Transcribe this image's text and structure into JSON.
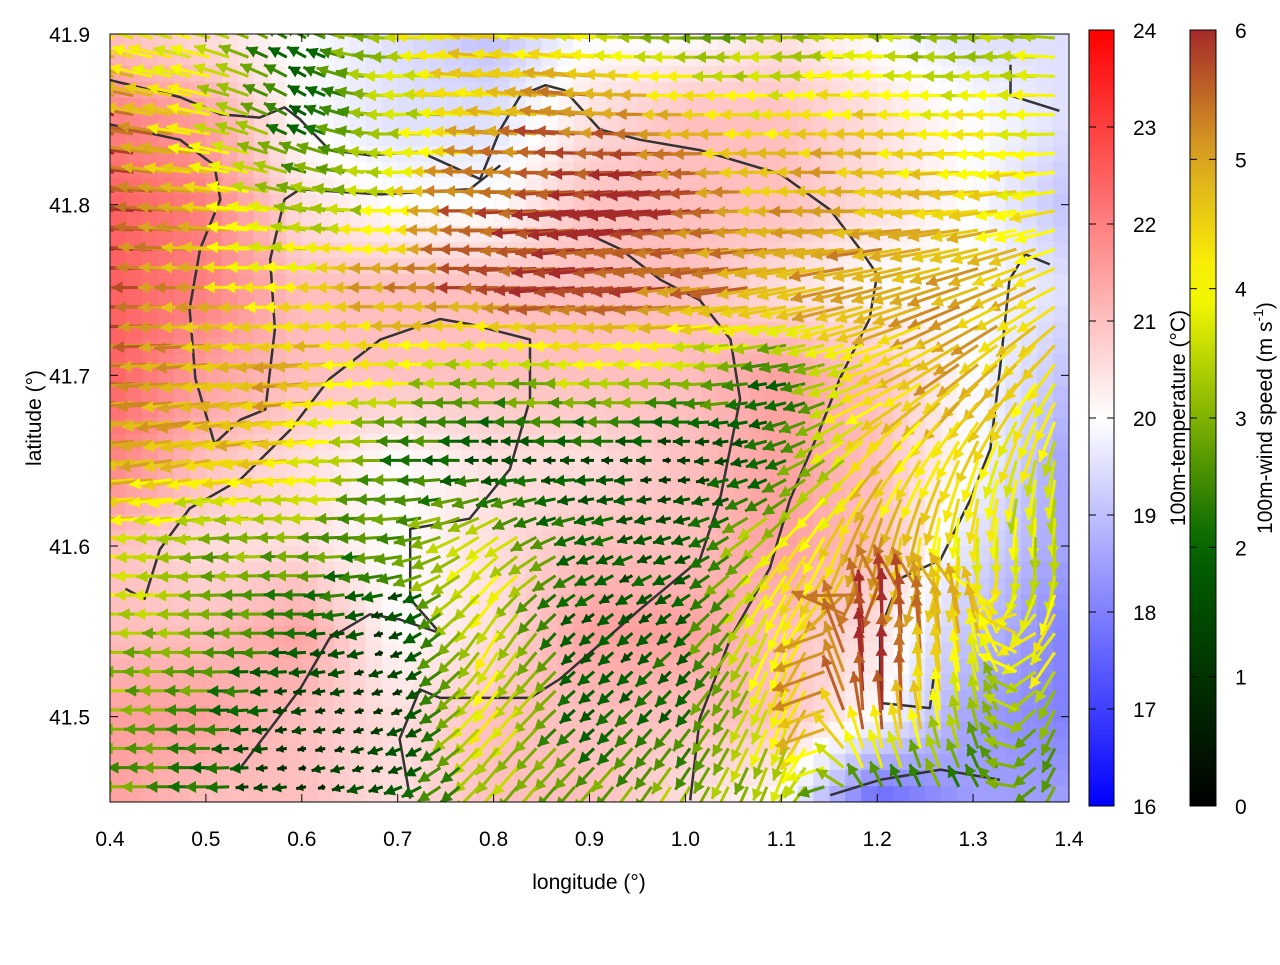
{
  "chart_data": {
    "type": "heatmap",
    "overlay": "vector field (wind arrows) with contour lines",
    "xlabel": "longitude (°)",
    "ylabel": "latitude (°)",
    "xlim": [
      0.4,
      1.4
    ],
    "ylim": [
      41.45,
      41.9
    ],
    "xticks": [
      "0.4",
      "0.5",
      "0.6",
      "0.7",
      "0.8",
      "0.9",
      "1.0",
      "1.1",
      "1.2",
      "1.3",
      "1.4"
    ],
    "yticks": [
      "41.5",
      "41.6",
      "41.7",
      "41.8",
      "41.9"
    ],
    "grid": false,
    "grid_lon": [
      0.4,
      0.5,
      0.6,
      0.7,
      0.8,
      0.9,
      1.0,
      1.1,
      1.2,
      1.3,
      1.4
    ],
    "grid_lat": [
      41.9,
      41.85,
      41.8,
      41.75,
      41.7,
      41.65,
      41.6,
      41.55,
      41.5,
      41.45
    ],
    "temperature_c": [
      [
        21,
        20.5,
        20,
        19.5,
        19,
        20,
        20,
        20.5,
        20,
        19.5,
        19.5
      ],
      [
        22,
        21.5,
        20,
        19.5,
        19.5,
        20.5,
        21,
        21,
        20.5,
        20,
        19.5
      ],
      [
        22.5,
        22,
        20.5,
        20,
        20,
        21,
        21,
        21,
        20.5,
        20,
        19
      ],
      [
        22.5,
        22,
        21,
        21,
        21,
        21,
        21,
        20.5,
        20,
        20,
        19.5
      ],
      [
        22.5,
        21.5,
        21,
        21,
        21,
        21,
        21,
        21.5,
        21,
        20,
        19
      ],
      [
        22,
        21,
        20.5,
        20,
        20.5,
        20.5,
        21,
        21.5,
        21,
        20,
        18.5
      ],
      [
        21,
        20.5,
        20.5,
        20,
        20.5,
        21,
        21,
        21.5,
        21,
        19.5,
        18.5
      ],
      [
        21,
        21,
        21.5,
        20,
        20.5,
        21.5,
        21.5,
        21,
        20.5,
        19,
        18
      ],
      [
        21.5,
        21.5,
        21,
        20.5,
        21,
        21,
        21,
        21,
        20,
        18.5,
        18
      ],
      [
        21.5,
        21,
        21,
        20.5,
        21,
        21,
        20.5,
        20,
        17.5,
        18.5,
        18.5
      ]
    ],
    "wind_speed_ms": [
      [
        4,
        3.5,
        2,
        3.5,
        4.5,
        4,
        3,
        3,
        3.5,
        3,
        3.5
      ],
      [
        6,
        4,
        2,
        3,
        4.5,
        5.5,
        5,
        4,
        4.5,
        4,
        4
      ],
      [
        6,
        5,
        3,
        3.5,
        5.5,
        6,
        6,
        5,
        5,
        4.5,
        4
      ],
      [
        6,
        5,
        4,
        5,
        5.5,
        6,
        5.5,
        5,
        5,
        5,
        4.5
      ],
      [
        5.5,
        5,
        5,
        4,
        3,
        3.5,
        3.5,
        2,
        4,
        5,
        4
      ],
      [
        5,
        4.5,
        4.5,
        2.5,
        1.5,
        1.5,
        1,
        2,
        4.5,
        4,
        3.5
      ],
      [
        4.5,
        3,
        3,
        2.5,
        4,
        2,
        1.5,
        4,
        5,
        4,
        3.5
      ],
      [
        3.5,
        3,
        2,
        1,
        4,
        1.5,
        2,
        4,
        6,
        4.5,
        4
      ],
      [
        3,
        2.5,
        1,
        1,
        4,
        2,
        2,
        4,
        6,
        3,
        3
      ],
      [
        3,
        2,
        1,
        1.5,
        3,
        3,
        3.5,
        3,
        2,
        2.5,
        3
      ]
    ],
    "wind_direction_deg_ccw_from_east": [
      [
        165,
        165,
        150,
        180,
        175,
        175,
        180,
        180,
        175,
        180,
        175
      ],
      [
        170,
        170,
        150,
        180,
        175,
        175,
        180,
        180,
        180,
        180,
        180
      ],
      [
        175,
        175,
        170,
        180,
        180,
        185,
        185,
        180,
        180,
        185,
        190
      ],
      [
        180,
        180,
        180,
        180,
        180,
        185,
        185,
        190,
        195,
        200,
        210
      ],
      [
        180,
        185,
        185,
        180,
        180,
        180,
        180,
        190,
        200,
        220,
        240
      ],
      [
        185,
        190,
        185,
        180,
        180,
        180,
        180,
        200,
        230,
        250,
        260
      ],
      [
        180,
        185,
        180,
        185,
        220,
        200,
        200,
        230,
        260,
        270,
        270
      ],
      [
        180,
        180,
        180,
        200,
        240,
        220,
        220,
        250,
        90,
        100,
        240
      ],
      [
        180,
        180,
        190,
        200,
        230,
        220,
        230,
        250,
        90,
        100,
        250
      ],
      [
        180,
        180,
        190,
        200,
        230,
        230,
        240,
        250,
        120,
        120,
        250
      ]
    ],
    "contours": [
      [
        [
          0.4,
          41.873
        ],
        [
          0.473,
          41.863
        ],
        [
          0.515,
          41.853
        ],
        [
          0.556,
          41.851
        ],
        [
          0.582,
          41.857
        ],
        [
          0.598,
          41.85
        ],
        [
          0.629,
          41.832
        ],
        [
          0.671,
          41.829
        ],
        [
          0.723,
          41.831
        ],
        [
          0.786,
          41.815
        ],
        [
          0.807,
          41.844
        ],
        [
          0.828,
          41.864
        ],
        [
          0.854,
          41.87
        ],
        [
          0.874,
          41.867
        ],
        [
          0.911,
          41.844
        ],
        [
          0.953,
          41.838
        ],
        [
          1.015,
          41.832
        ],
        [
          1.099,
          41.818
        ],
        [
          1.151,
          41.797
        ],
        [
          1.182,
          41.774
        ],
        [
          1.2,
          41.759
        ],
        [
          1.192,
          41.733
        ],
        [
          1.161,
          41.698
        ],
        [
          1.14,
          41.668
        ],
        [
          1.109,
          41.627
        ],
        [
          1.088,
          41.587
        ],
        [
          1.047,
          41.546
        ],
        [
          1.015,
          41.499
        ],
        [
          1.005,
          41.451
        ]
      ],
      [
        [
          0.4,
          41.847
        ],
        [
          0.473,
          41.838
        ],
        [
          0.509,
          41.823
        ],
        [
          0.515,
          41.803
        ],
        [
          0.494,
          41.774
        ],
        [
          0.483,
          41.739
        ],
        [
          0.489,
          41.698
        ],
        [
          0.509,
          41.66
        ],
        [
          0.536,
          41.674
        ],
        [
          0.562,
          41.68
        ],
        [
          0.572,
          41.727
        ],
        [
          0.567,
          41.768
        ],
        [
          0.582,
          41.803
        ],
        [
          0.598,
          41.809
        ],
        [
          0.682,
          41.806
        ],
        [
          0.775,
          41.809
        ],
        [
          0.807,
          41.823
        ]
      ],
      [
        [
          0.416,
          41.575
        ],
        [
          0.436,
          41.569
        ],
        [
          0.452,
          41.598
        ],
        [
          0.483,
          41.622
        ],
        [
          0.536,
          41.639
        ],
        [
          0.588,
          41.668
        ],
        [
          0.629,
          41.698
        ],
        [
          0.682,
          41.721
        ],
        [
          0.744,
          41.733
        ],
        [
          0.775,
          41.73
        ],
        [
          0.838,
          41.721
        ],
        [
          0.838,
          41.686
        ],
        [
          0.817,
          41.645
        ],
        [
          0.775,
          41.616
        ],
        [
          0.713,
          41.61
        ],
        [
          0.713,
          41.569
        ],
        [
          0.744,
          41.549
        ],
        [
          0.702,
          41.557
        ],
        [
          0.671,
          41.56
        ],
        [
          0.629,
          41.546
        ],
        [
          0.598,
          41.516
        ],
        [
          0.567,
          41.493
        ],
        [
          0.536,
          41.47
        ]
      ],
      [
        [
          1.38,
          41.765
        ],
        [
          1.354,
          41.771
        ],
        [
          1.338,
          41.756
        ],
        [
          1.328,
          41.704
        ],
        [
          1.318,
          41.657
        ],
        [
          1.297,
          41.627
        ],
        [
          1.266,
          41.592
        ],
        [
          1.224,
          41.581
        ],
        [
          1.203,
          41.551
        ],
        [
          1.203,
          41.508
        ],
        [
          1.255,
          41.505
        ],
        [
          1.26,
          41.528
        ]
      ],
      [
        [
          0.89,
          41.785
        ],
        [
          0.932,
          41.774
        ],
        [
          0.974,
          41.756
        ],
        [
          1.015,
          41.744
        ],
        [
          1.047,
          41.721
        ],
        [
          1.057,
          41.686
        ],
        [
          1.036,
          41.627
        ],
        [
          1.015,
          41.592
        ],
        [
          0.953,
          41.563
        ],
        [
          0.869,
          41.522
        ],
        [
          0.838,
          41.511
        ],
        [
          0.744,
          41.511
        ],
        [
          0.723,
          41.516
        ],
        [
          0.702,
          41.487
        ],
        [
          0.713,
          41.452
        ]
      ],
      [
        [
          1.151,
          41.454
        ],
        [
          1.203,
          41.463
        ],
        [
          1.266,
          41.469
        ],
        [
          1.328,
          41.463
        ]
      ],
      [
        [
          1.339,
          41.882
        ],
        [
          1.339,
          41.864
        ],
        [
          1.39,
          41.855
        ]
      ]
    ],
    "colorbars": [
      {
        "label": "100m-temperature (°C)",
        "range": [
          16,
          24
        ],
        "ticks": [
          "16",
          "17",
          "18",
          "19",
          "20",
          "21",
          "22",
          "23",
          "24"
        ],
        "palette": [
          [
            16,
            "#0000ff"
          ],
          [
            20,
            "#ffffff"
          ],
          [
            24,
            "#ff0000"
          ]
        ]
      },
      {
        "label": "100m-wind speed (m s",
        "label_sup": "-1",
        "label_end": ")",
        "range": [
          0,
          6
        ],
        "ticks": [
          "0",
          "1",
          "2",
          "3",
          "4",
          "5",
          "6"
        ],
        "palette": [
          [
            0,
            "#000000"
          ],
          [
            2,
            "#006400"
          ],
          [
            4,
            "#ffff00"
          ],
          [
            5,
            "#daa520"
          ],
          [
            6,
            "#a52a2a"
          ]
        ]
      }
    ],
    "contour_color": "#333333"
  }
}
